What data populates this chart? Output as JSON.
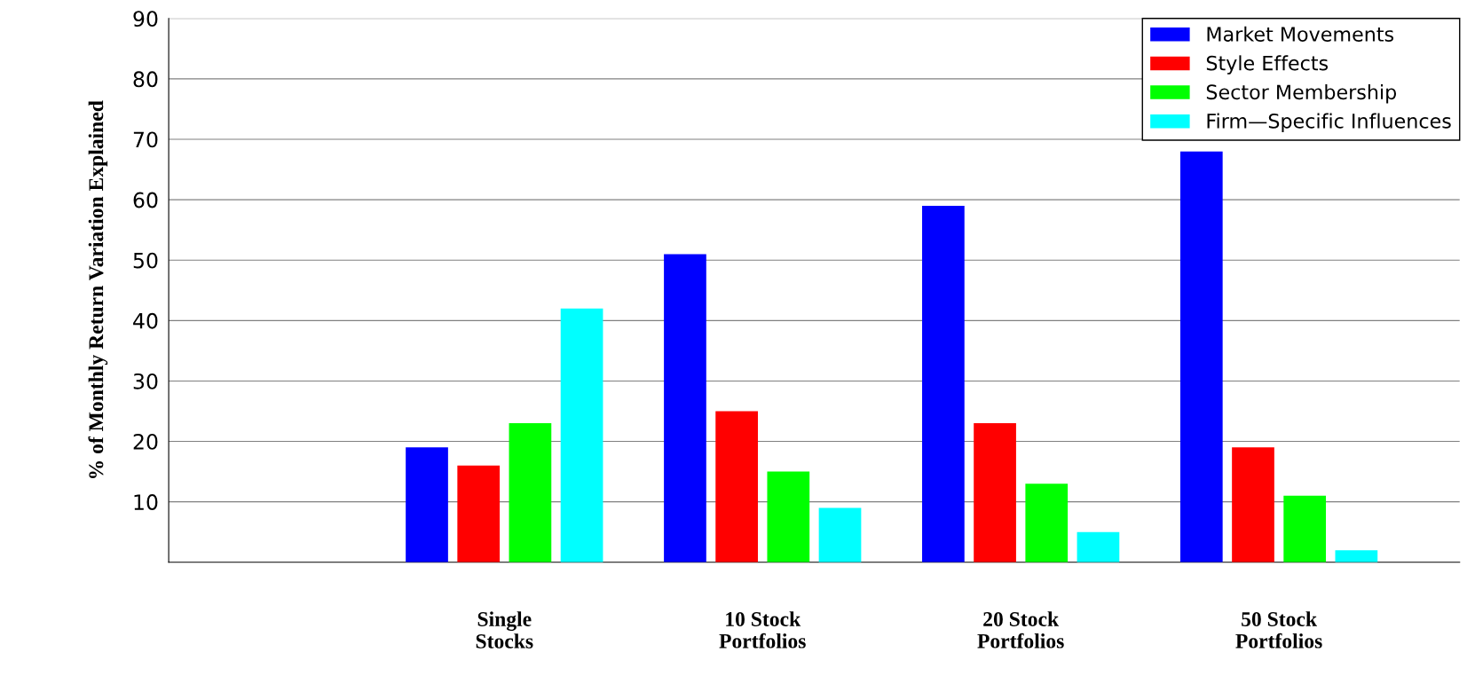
{
  "chart_data": {
    "type": "bar",
    "ylabel": "% of Monthly Return Variation Explained",
    "categories": [
      "Single\nStocks",
      "10 Stock\nPortfolios",
      "20 Stock\nPortfolios",
      "50 Stock\nPortfolios"
    ],
    "series": [
      {
        "name": "Market Movements",
        "color": "#0000ff",
        "values": [
          19,
          51,
          59,
          68
        ]
      },
      {
        "name": "Style Effects",
        "color": "#ff0000",
        "values": [
          16,
          25,
          23,
          19
        ]
      },
      {
        "name": "Sector Membership",
        "color": "#00ff00",
        "values": [
          23,
          15,
          13,
          11
        ]
      },
      {
        "name": "Firm—Specific Influences",
        "color": "#00ffff",
        "values": [
          42,
          9,
          5,
          2
        ]
      }
    ],
    "ylim": [
      0,
      90
    ],
    "yticks": [
      10,
      20,
      30,
      40,
      50,
      60,
      70,
      80,
      90
    ],
    "grid": "y",
    "legend": "top right"
  }
}
